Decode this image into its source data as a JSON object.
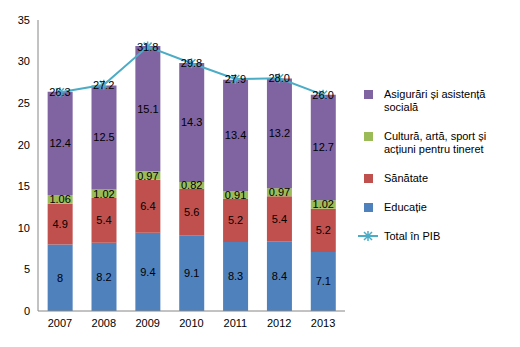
{
  "chart_data": {
    "type": "bar",
    "stacked": true,
    "data_labels": true,
    "grid": false,
    "legend": "right",
    "categories": [
      "2007",
      "2008",
      "2009",
      "2010",
      "2011",
      "2012",
      "2013"
    ],
    "ylim": [
      0,
      35
    ],
    "yticks": [
      0,
      5,
      10,
      15,
      20,
      25,
      30,
      35
    ],
    "series": [
      {
        "name": "Educație",
        "type": "bar",
        "color": "#4f81bd",
        "values": [
          8,
          8.2,
          9.4,
          9.1,
          8.3,
          8.4,
          7.1
        ]
      },
      {
        "name": "Sănătate",
        "type": "bar",
        "color": "#c0504d",
        "values": [
          4.9,
          5.4,
          6.4,
          5.6,
          5.2,
          5.4,
          5.2
        ]
      },
      {
        "name": "Cultură, artă, sport și acțiuni pentru tineret",
        "type": "bar",
        "color": "#9bbb59",
        "values": [
          1.06,
          1.02,
          0.97,
          0.82,
          0.91,
          0.97,
          1.02
        ]
      },
      {
        "name": "Asigurări și asistență socială",
        "type": "bar",
        "color": "#8064a2",
        "values": [
          12.4,
          12.5,
          15.1,
          14.3,
          13.4,
          13.2,
          12.7
        ]
      },
      {
        "name": "Total în PIB",
        "type": "line",
        "color": "#4bacc6",
        "marker": "star",
        "values": [
          26.3,
          27.2,
          31.8,
          29.8,
          27.9,
          28.0,
          26.0
        ]
      }
    ]
  }
}
